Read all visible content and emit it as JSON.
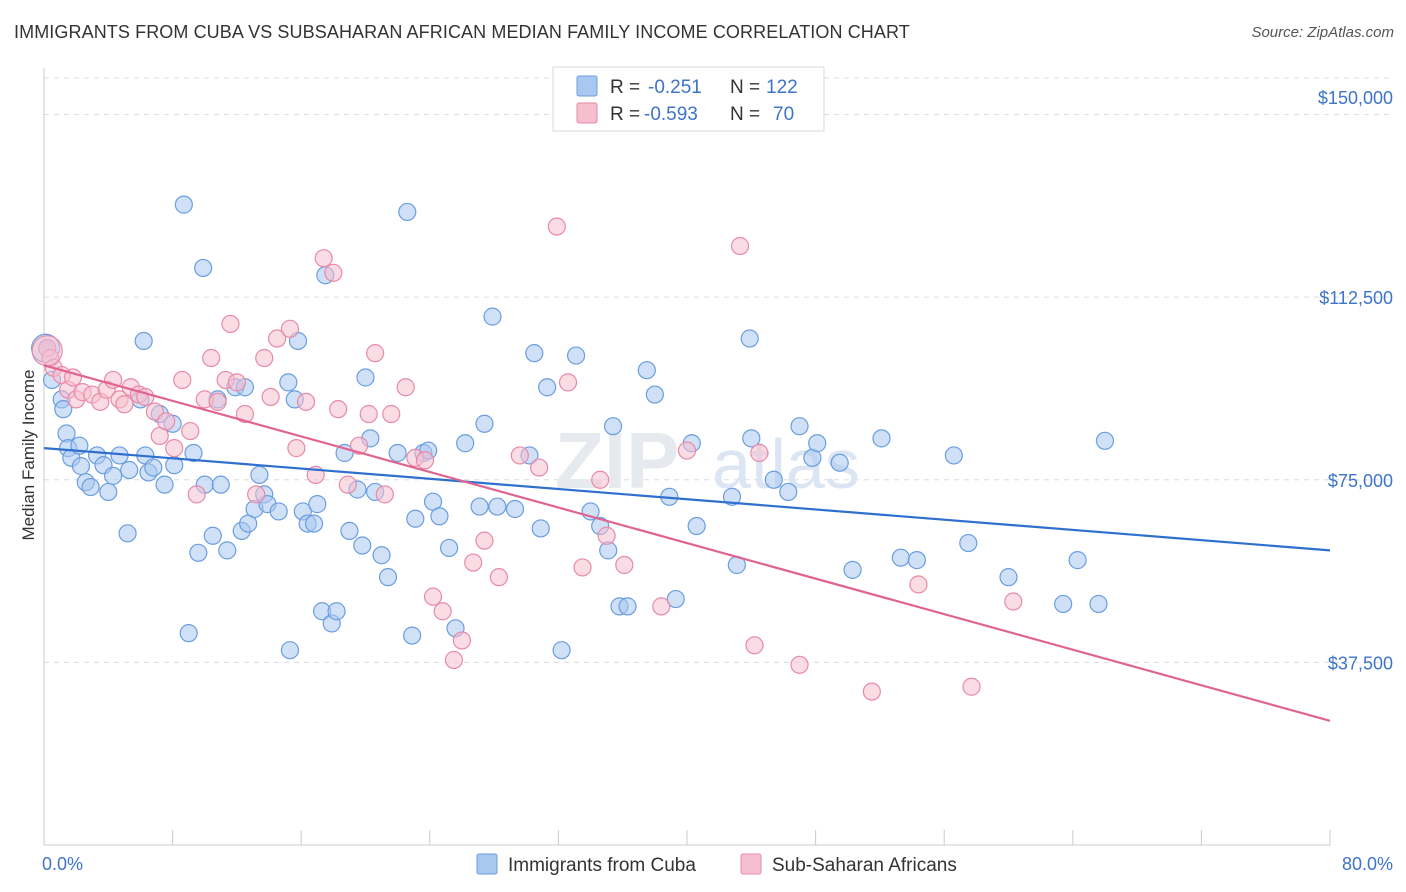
{
  "header": {
    "title": "IMMIGRANTS FROM CUBA VS SUBSAHARAN AFRICAN MEDIAN FAMILY INCOME CORRELATION CHART",
    "source": "Source: ZipAtlas.com"
  },
  "watermark": {
    "part1": "ZIP",
    "part2": "atlas"
  },
  "colors": {
    "blue_fill": "#a9c8f0",
    "blue_stroke": "#6a9ee0",
    "blue_line": "#2f6fce",
    "pink_fill": "#f6bfd0",
    "pink_stroke": "#e88aa8",
    "pink_line": "#e0648f",
    "tick_text": "#3d74c9",
    "grid": "#d8dde6"
  },
  "legend": {
    "r_label": "R =",
    "n_label": "N =",
    "items": [
      {
        "r": "-0.251",
        "n": "122"
      },
      {
        "r": "-0.593",
        "n": "70"
      }
    ]
  },
  "chart_data": {
    "type": "scatter",
    "title": "IMMIGRANTS FROM CUBA VS SUBSAHARAN AFRICAN MEDIAN FAMILY INCOME CORRELATION CHART",
    "xlabel": "",
    "ylabel": "Median Family Income",
    "xlim": [
      0,
      80
    ],
    "ylim": [
      0,
      157500
    ],
    "x_tick_labels": [
      "0.0%",
      "80.0%"
    ],
    "y_ticks": [
      37500,
      75000,
      112500,
      150000
    ],
    "y_tick_labels": [
      "$37,500",
      "$75,000",
      "$112,500",
      "$150,000"
    ],
    "grid": "horizontal dashed",
    "legend_position": "top-center",
    "series": [
      {
        "name": "Immigrants from Cuba",
        "color": "#6a9ee0",
        "trend": {
          "x": [
            0,
            80
          ],
          "y": [
            81500,
            60500
          ]
        },
        "points": [
          [
            0.2,
            102000
          ],
          [
            0.5,
            95500
          ],
          [
            1.1,
            91500
          ],
          [
            1.2,
            89500
          ],
          [
            1.4,
            84500
          ],
          [
            1.5,
            81500
          ],
          [
            1.7,
            79500
          ],
          [
            2.2,
            82000
          ],
          [
            2.3,
            77800
          ],
          [
            2.6,
            74500
          ],
          [
            2.9,
            73500
          ],
          [
            3.3,
            80000
          ],
          [
            3.7,
            78000
          ],
          [
            4.0,
            72500
          ],
          [
            4.3,
            75800
          ],
          [
            4.7,
            80000
          ],
          [
            5.2,
            64000
          ],
          [
            5.3,
            77000
          ],
          [
            6.0,
            91500
          ],
          [
            6.2,
            103500
          ],
          [
            6.3,
            80000
          ],
          [
            6.5,
            76500
          ],
          [
            6.8,
            77500
          ],
          [
            7.2,
            88500
          ],
          [
            7.5,
            74000
          ],
          [
            8.0,
            86500
          ],
          [
            8.1,
            78000
          ],
          [
            8.7,
            131500
          ],
          [
            9.0,
            43500
          ],
          [
            9.3,
            80500
          ],
          [
            9.6,
            60000
          ],
          [
            9.9,
            118500
          ],
          [
            10.0,
            74000
          ],
          [
            10.5,
            63500
          ],
          [
            10.8,
            91500
          ],
          [
            11.0,
            74000
          ],
          [
            11.4,
            60500
          ],
          [
            11.9,
            94000
          ],
          [
            12.3,
            64500
          ],
          [
            12.5,
            94000
          ],
          [
            12.7,
            66000
          ],
          [
            13.1,
            69000
          ],
          [
            13.4,
            76000
          ],
          [
            13.7,
            72000
          ],
          [
            13.9,
            70000
          ],
          [
            14.6,
            68500
          ],
          [
            15.2,
            95000
          ],
          [
            15.3,
            40000
          ],
          [
            15.6,
            91500
          ],
          [
            15.8,
            103500
          ],
          [
            16.1,
            68500
          ],
          [
            16.4,
            66000
          ],
          [
            16.8,
            66000
          ],
          [
            17.0,
            70000
          ],
          [
            17.3,
            48000
          ],
          [
            17.5,
            117000
          ],
          [
            17.9,
            45500
          ],
          [
            18.2,
            48000
          ],
          [
            18.7,
            80500
          ],
          [
            19.0,
            64500
          ],
          [
            19.5,
            73000
          ],
          [
            19.8,
            61500
          ],
          [
            20.0,
            96000
          ],
          [
            20.3,
            83500
          ],
          [
            20.6,
            72500
          ],
          [
            21.0,
            59500
          ],
          [
            21.4,
            55000
          ],
          [
            22.0,
            80500
          ],
          [
            22.6,
            130000
          ],
          [
            22.9,
            43000
          ],
          [
            23.1,
            67000
          ],
          [
            23.6,
            80500
          ],
          [
            23.9,
            81000
          ],
          [
            24.2,
            70500
          ],
          [
            24.6,
            67500
          ],
          [
            25.2,
            61000
          ],
          [
            25.6,
            44500
          ],
          [
            26.2,
            82500
          ],
          [
            27.1,
            69500
          ],
          [
            27.4,
            86500
          ],
          [
            27.9,
            108500
          ],
          [
            28.2,
            69500
          ],
          [
            29.3,
            69000
          ],
          [
            30.2,
            80000
          ],
          [
            30.5,
            101000
          ],
          [
            30.9,
            65000
          ],
          [
            31.3,
            94000
          ],
          [
            32.2,
            40000
          ],
          [
            33.1,
            100500
          ],
          [
            34.0,
            68500
          ],
          [
            34.6,
            65500
          ],
          [
            35.1,
            60500
          ],
          [
            35.4,
            86000
          ],
          [
            35.8,
            49000
          ],
          [
            36.3,
            49000
          ],
          [
            37.5,
            97500
          ],
          [
            38.0,
            92500
          ],
          [
            38.9,
            71500
          ],
          [
            39.3,
            50500
          ],
          [
            40.3,
            82500
          ],
          [
            40.6,
            65500
          ],
          [
            42.8,
            71500
          ],
          [
            43.1,
            57500
          ],
          [
            43.9,
            104000
          ],
          [
            44.0,
            83500
          ],
          [
            45.4,
            75000
          ],
          [
            46.3,
            72500
          ],
          [
            47.0,
            86000
          ],
          [
            47.8,
            79500
          ],
          [
            48.1,
            82500
          ],
          [
            49.5,
            78500
          ],
          [
            50.3,
            56500
          ],
          [
            52.1,
            83500
          ],
          [
            53.3,
            59000
          ],
          [
            54.3,
            58500
          ],
          [
            56.6,
            80000
          ],
          [
            57.5,
            62000
          ],
          [
            60.0,
            55000
          ],
          [
            63.4,
            49500
          ],
          [
            64.3,
            58500
          ],
          [
            65.6,
            49500
          ],
          [
            66.0,
            83000
          ]
        ]
      },
      {
        "name": "Sub-Saharan Africans",
        "color": "#e88aa8",
        "trend": {
          "x": [
            0,
            80
          ],
          "y": [
            98500,
            25500
          ]
        },
        "points": [
          [
            0.2,
            102000
          ],
          [
            0.4,
            100000
          ],
          [
            0.6,
            98000
          ],
          [
            1.1,
            96500
          ],
          [
            1.5,
            93500
          ],
          [
            1.8,
            96000
          ],
          [
            2.0,
            91500
          ],
          [
            2.4,
            93000
          ],
          [
            3.0,
            92500
          ],
          [
            3.5,
            91000
          ],
          [
            3.9,
            93500
          ],
          [
            4.3,
            95500
          ],
          [
            4.7,
            91500
          ],
          [
            5.0,
            90500
          ],
          [
            5.4,
            94000
          ],
          [
            5.9,
            92500
          ],
          [
            6.3,
            92000
          ],
          [
            6.9,
            89000
          ],
          [
            7.2,
            84000
          ],
          [
            7.6,
            87000
          ],
          [
            8.1,
            81500
          ],
          [
            8.6,
            95500
          ],
          [
            9.1,
            85000
          ],
          [
            9.5,
            72000
          ],
          [
            10.0,
            91500
          ],
          [
            10.4,
            100000
          ],
          [
            10.8,
            91000
          ],
          [
            11.3,
            95500
          ],
          [
            11.6,
            107000
          ],
          [
            12.0,
            95000
          ],
          [
            12.5,
            88500
          ],
          [
            13.2,
            72000
          ],
          [
            13.7,
            100000
          ],
          [
            14.1,
            92000
          ],
          [
            14.5,
            104000
          ],
          [
            15.3,
            106000
          ],
          [
            15.7,
            81500
          ],
          [
            16.3,
            91000
          ],
          [
            16.9,
            76000
          ],
          [
            17.4,
            120500
          ],
          [
            18.0,
            117500
          ],
          [
            18.3,
            89500
          ],
          [
            18.9,
            74000
          ],
          [
            19.6,
            82000
          ],
          [
            20.2,
            88500
          ],
          [
            20.6,
            101000
          ],
          [
            21.2,
            72000
          ],
          [
            21.6,
            88500
          ],
          [
            22.5,
            94000
          ],
          [
            23.1,
            79500
          ],
          [
            23.7,
            79000
          ],
          [
            24.2,
            51000
          ],
          [
            24.8,
            48000
          ],
          [
            25.5,
            38000
          ],
          [
            26.0,
            42000
          ],
          [
            26.7,
            58000
          ],
          [
            27.4,
            62500
          ],
          [
            28.3,
            55000
          ],
          [
            29.6,
            80000
          ],
          [
            30.8,
            77500
          ],
          [
            31.9,
            127000
          ],
          [
            32.6,
            95000
          ],
          [
            33.5,
            57000
          ],
          [
            34.6,
            75000
          ],
          [
            35.0,
            63500
          ],
          [
            36.1,
            57500
          ],
          [
            38.4,
            49000
          ],
          [
            40.0,
            81000
          ],
          [
            43.3,
            123000
          ],
          [
            44.2,
            41000
          ]
        ]
      }
    ],
    "extra_points_pink": [
      [
        44.5,
        80500
      ],
      [
        47.0,
        37000
      ],
      [
        51.5,
        31500
      ],
      [
        54.4,
        53500
      ],
      [
        57.7,
        32500
      ],
      [
        60.3,
        50000
      ]
    ]
  },
  "bottom_legend": [
    "Immigrants from Cuba",
    "Sub-Saharan Africans"
  ]
}
